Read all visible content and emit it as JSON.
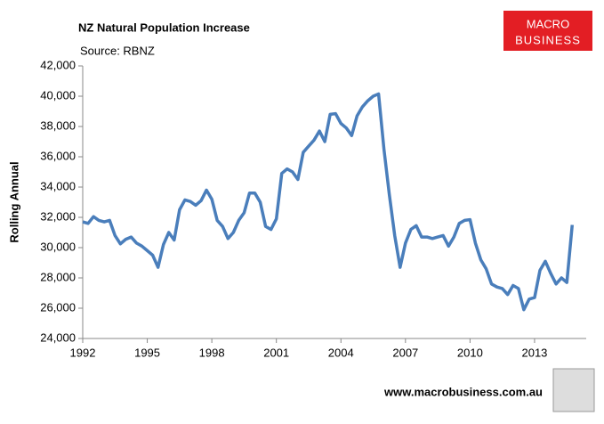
{
  "chart_data": {
    "type": "line",
    "title": "NZ Natural Population Increase",
    "subtitle": "Source: RBNZ",
    "y_label": "Rolling Annual",
    "logo": [
      "MACRO",
      "BUSINESS"
    ],
    "footer": "www.macrobusiness.com.au",
    "x": [
      1992,
      1992.25,
      1992.5,
      1992.75,
      1993,
      1993.25,
      1993.5,
      1993.75,
      1994,
      1994.25,
      1994.5,
      1994.75,
      1995,
      1995.25,
      1995.5,
      1995.75,
      1996,
      1996.25,
      1996.5,
      1996.75,
      1997,
      1997.25,
      1997.5,
      1997.75,
      1998,
      1998.25,
      1998.5,
      1998.75,
      1999,
      1999.25,
      1999.5,
      1999.75,
      2000,
      2000.25,
      2000.5,
      2000.75,
      2001,
      2001.25,
      2001.5,
      2001.75,
      2002,
      2002.25,
      2002.5,
      2002.75,
      2003,
      2003.25,
      2003.5,
      2003.75,
      2004,
      2004.25,
      2004.5,
      2004.75,
      2005,
      2005.25,
      2005.5,
      2005.75,
      2006,
      2006.25,
      2006.5,
      2006.75,
      2007,
      2007.25,
      2007.5,
      2007.75,
      2008,
      2008.25,
      2008.5,
      2008.75,
      2009,
      2009.25,
      2009.5,
      2009.75,
      2010,
      2010.25,
      2010.5,
      2010.75,
      2011,
      2011.25,
      2011.5,
      2011.75,
      2012,
      2012.25,
      2012.5,
      2012.75,
      2013,
      2013.25,
      2013.5,
      2013.75,
      2014,
      2014.25,
      2014.5,
      2014.75
    ],
    "series": [
      {
        "name": "Rolling Annual",
        "color": "#4a7ebb",
        "values": [
          31700,
          31600,
          32050,
          31800,
          31700,
          31800,
          30800,
          30250,
          30550,
          30700,
          30300,
          30100,
          29800,
          29500,
          28700,
          30200,
          31000,
          30500,
          32500,
          33150,
          33050,
          32800,
          33100,
          33800,
          33200,
          31800,
          31400,
          30600,
          31000,
          31800,
          32300,
          33600,
          33600,
          33000,
          31400,
          31200,
          31900,
          34900,
          35200,
          35000,
          34500,
          36300,
          36700,
          37100,
          37700,
          37000,
          38800,
          38850,
          38200,
          37900,
          37400,
          38700,
          39300,
          39700,
          40000,
          40150,
          36500,
          33500,
          30800,
          28700,
          30300,
          31200,
          31450,
          30700,
          30700,
          30600,
          30700,
          30800,
          30100,
          30700,
          31600,
          31800,
          31850,
          30300,
          29200,
          28600,
          27600,
          27400,
          27300,
          26900,
          27500,
          27300,
          25900,
          26600,
          26700,
          28500,
          29100,
          28300,
          27600,
          28000,
          27700,
          31500
        ]
      }
    ],
    "xlim": [
      1992,
      2015.4
    ],
    "xticks": [
      1992,
      1995,
      1998,
      2001,
      2004,
      2007,
      2010,
      2013
    ],
    "ylim": [
      24000,
      42000
    ],
    "yticks": [
      {
        "value": 24000,
        "label": "24,000"
      },
      {
        "value": 26000,
        "label": "26,000"
      },
      {
        "value": 28000,
        "label": "28,000"
      },
      {
        "value": 30000,
        "label": "30,000"
      },
      {
        "value": 32000,
        "label": "32,000"
      },
      {
        "value": 34000,
        "label": "34,000"
      },
      {
        "value": 36000,
        "label": "36,000"
      },
      {
        "value": 38000,
        "label": "38,000"
      },
      {
        "value": 40000,
        "label": "40,000"
      },
      {
        "value": 42000,
        "label": "42,000"
      }
    ]
  }
}
